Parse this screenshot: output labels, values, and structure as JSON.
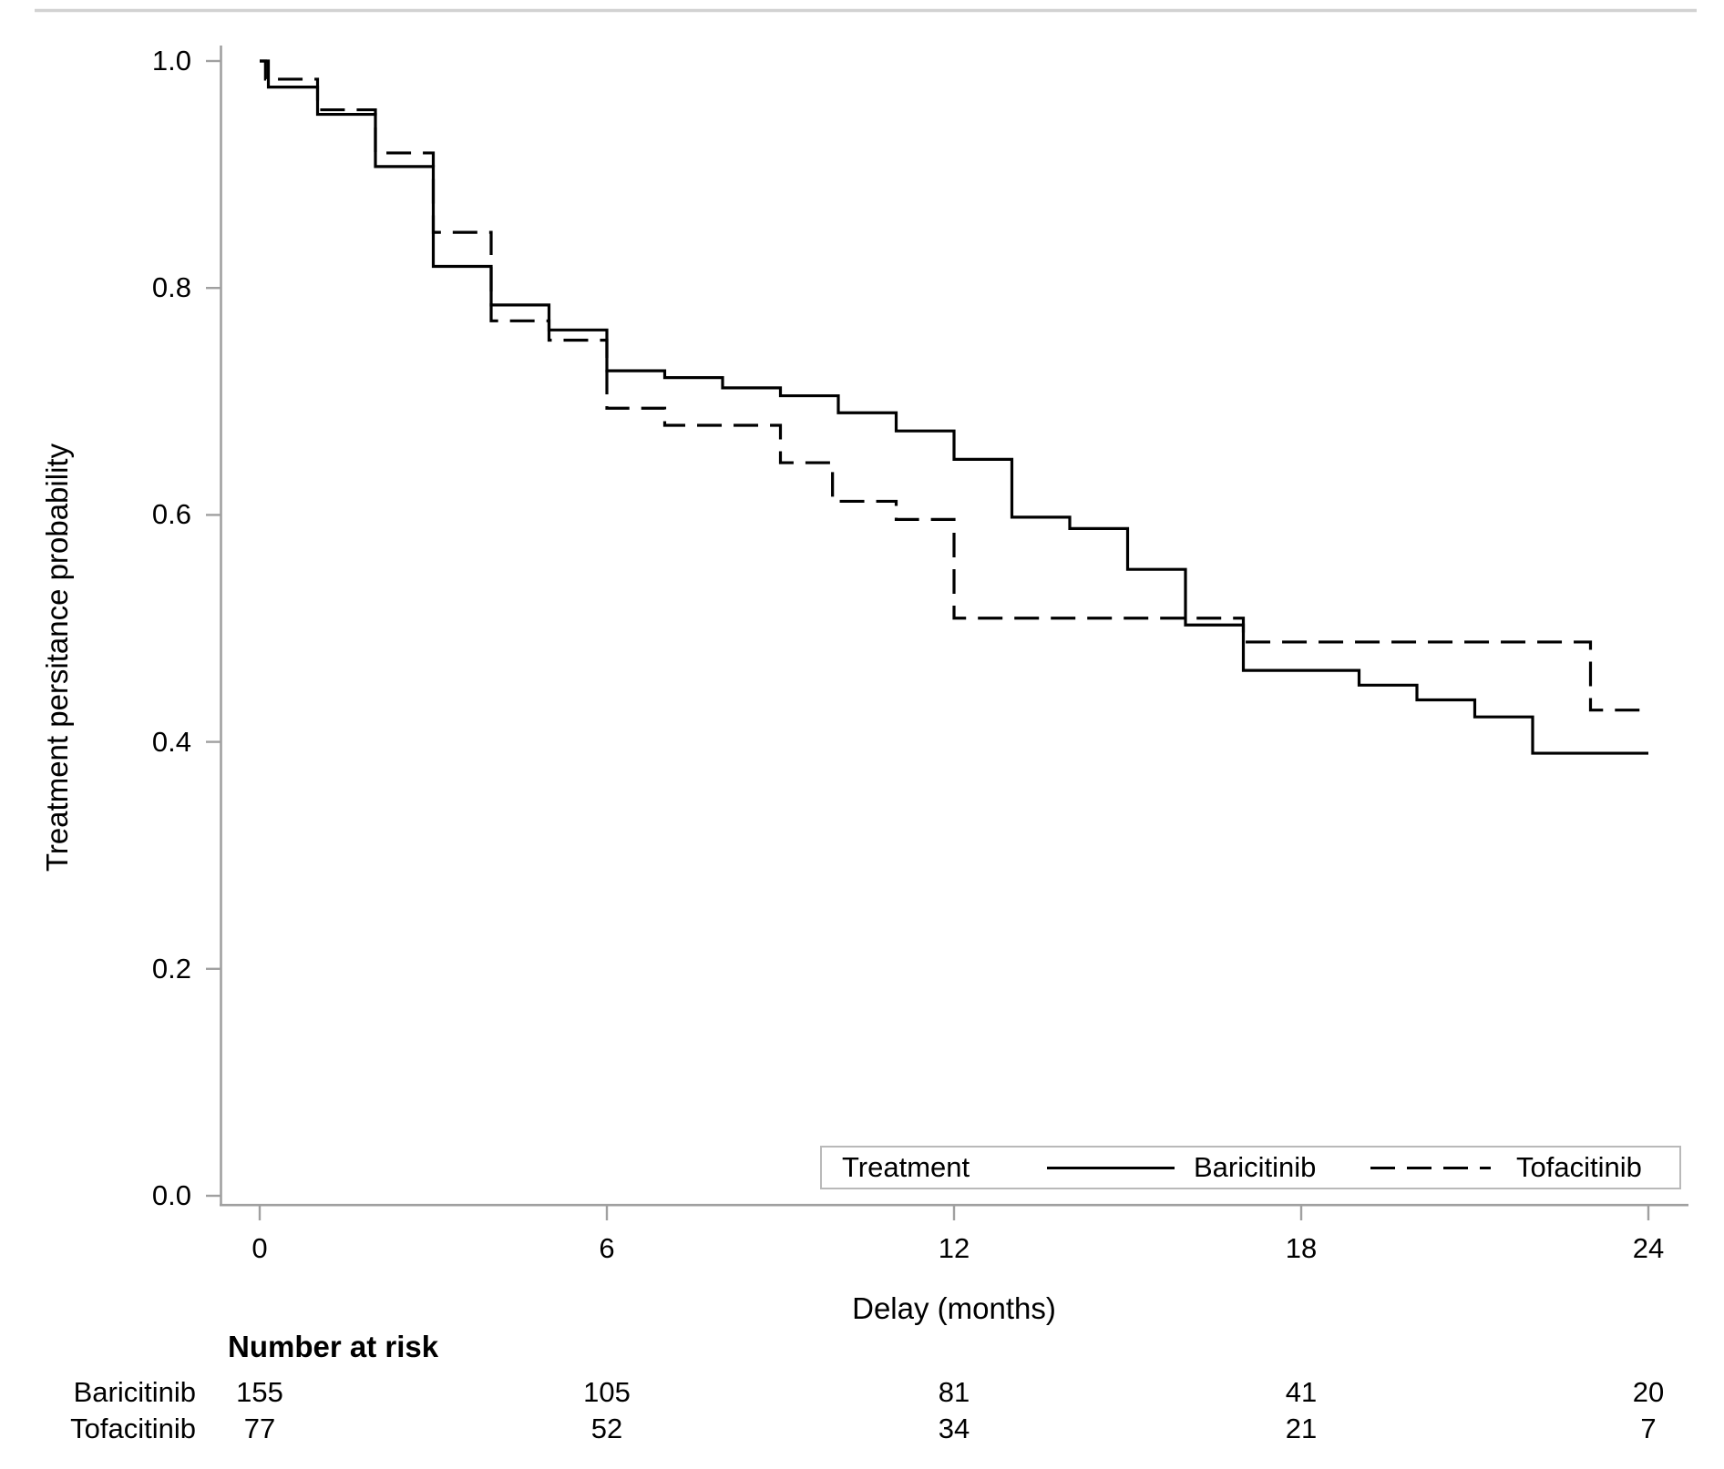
{
  "chart_data": {
    "type": "line",
    "subtype": "kaplan-meier-step",
    "title": "",
    "xlabel": "Delay (months)",
    "ylabel": "Treatment persitance probability",
    "xlim": [
      0,
      24
    ],
    "ylim": [
      0.0,
      1.0
    ],
    "grid": false,
    "x_ticks": [
      0,
      6,
      12,
      18,
      24
    ],
    "y_ticks": [
      1.0,
      0.8,
      0.6,
      0.4,
      0.2,
      0.0
    ],
    "x_tick_labels": [
      "0",
      "6",
      "12",
      "18",
      "24"
    ],
    "y_tick_labels": [
      "1.0",
      "0.8",
      "0.6",
      "0.4",
      "0.2",
      "0.0"
    ],
    "axis_color": "#a0a0a0",
    "curve_color": "#000000",
    "top_rule_color": "#d2d2d2",
    "legend": {
      "position": "bottom-right-inside",
      "title": "Treatment",
      "entries": [
        {
          "label": "Baricitinib",
          "line": "solid"
        },
        {
          "label": "Tofacitinib",
          "line": "dashed"
        }
      ]
    },
    "series": [
      {
        "name": "Baricitinib",
        "line": "solid",
        "color": "#000000",
        "steps": [
          [
            0,
            1.0
          ],
          [
            0.15,
            0.977
          ],
          [
            1,
            0.953
          ],
          [
            2,
            0.907
          ],
          [
            3,
            0.819
          ],
          [
            4,
            0.785
          ],
          [
            5,
            0.763
          ],
          [
            6,
            0.727
          ],
          [
            7,
            0.721
          ],
          [
            8,
            0.712
          ],
          [
            9,
            0.705
          ],
          [
            10,
            0.69
          ],
          [
            11,
            0.674
          ],
          [
            12,
            0.649
          ],
          [
            13,
            0.598
          ],
          [
            14,
            0.588
          ],
          [
            15,
            0.552
          ],
          [
            16,
            0.503
          ],
          [
            17,
            0.463
          ],
          [
            19,
            0.45
          ],
          [
            20,
            0.437
          ],
          [
            21,
            0.422
          ],
          [
            22,
            0.39
          ],
          [
            24,
            0.39
          ]
        ]
      },
      {
        "name": "Tofacitinib",
        "line": "dashed",
        "color": "#000000",
        "steps": [
          [
            0,
            1.0
          ],
          [
            0.1,
            0.984
          ],
          [
            1,
            0.957
          ],
          [
            2,
            0.919
          ],
          [
            3,
            0.849
          ],
          [
            4,
            0.771
          ],
          [
            5,
            0.754
          ],
          [
            6,
            0.694
          ],
          [
            7,
            0.679
          ],
          [
            9,
            0.646
          ],
          [
            9.9,
            0.612
          ],
          [
            11,
            0.596
          ],
          [
            12,
            0.509
          ],
          [
            17,
            0.488
          ],
          [
            23,
            0.428
          ],
          [
            24,
            0.428
          ]
        ]
      }
    ],
    "number_at_risk": {
      "heading": "Number at risk",
      "time_points": [
        0,
        6,
        12,
        18,
        24
      ],
      "rows": [
        {
          "label": "Baricitinib",
          "values": [
            "155",
            "105",
            "81",
            "41",
            "20"
          ]
        },
        {
          "label": "Tofacitinib",
          "values": [
            "77",
            "52",
            "34",
            "21",
            "7"
          ]
        }
      ]
    }
  }
}
